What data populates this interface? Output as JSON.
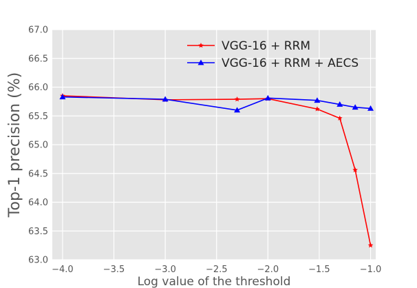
{
  "chart_data": {
    "type": "line",
    "title": "",
    "xlabel": "Log value of the threshold",
    "ylabel": "Top-1 precision (%)",
    "xlim": [
      -4.1,
      -0.95
    ],
    "ylim": [
      63.0,
      67.0
    ],
    "xticks": [
      -4.0,
      -3.5,
      -3.0,
      -2.5,
      -2.0,
      -1.5,
      -1.0
    ],
    "xtick_labels": [
      "−4.0",
      "−3.5",
      "−3.0",
      "−2.5",
      "−2.0",
      "−1.5",
      "−1.0"
    ],
    "yticks": [
      63.0,
      63.5,
      64.0,
      64.5,
      65.0,
      65.5,
      66.0,
      66.5,
      67.0
    ],
    "ytick_labels": [
      "63.0",
      "63.5",
      "64.0",
      "64.5",
      "65.0",
      "65.5",
      "66.0",
      "66.5",
      "67.0"
    ],
    "grid": true,
    "legend_position": "top-right",
    "series": [
      {
        "name": "VGG-16 + RRM",
        "color": "#ff0000",
        "marker": "star",
        "x": [
          -4.0,
          -3.0,
          -2.3,
          -2.0,
          -1.52,
          -1.3,
          -1.15,
          -1.0
        ],
        "y": [
          65.85,
          65.78,
          65.79,
          65.8,
          65.62,
          65.46,
          64.56,
          63.25
        ]
      },
      {
        "name": "VGG-16 + RRM + AECS",
        "color": "#0000ff",
        "marker": "triangle",
        "x": [
          -4.0,
          -3.0,
          -2.3,
          -2.0,
          -1.52,
          -1.3,
          -1.15,
          -1.0
        ],
        "y": [
          65.83,
          65.79,
          65.6,
          65.81,
          65.77,
          65.7,
          65.65,
          65.63
        ]
      }
    ]
  }
}
